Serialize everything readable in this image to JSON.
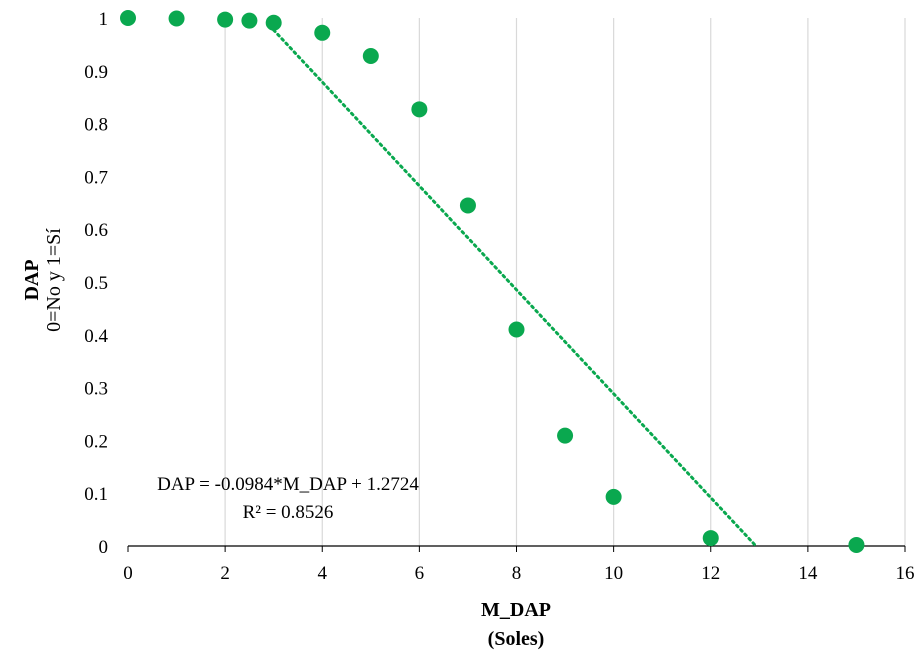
{
  "chart_data": {
    "type": "scatter",
    "xlabel": "M_DAP",
    "xlabel_unit": "(Soles)",
    "ylabel": "DAP",
    "ylabel_sub": "0=No y 1=Sí",
    "xlim": [
      0,
      16
    ],
    "ylim": [
      0,
      1
    ],
    "x_ticks": [
      "0",
      "2",
      "4",
      "6",
      "8",
      "10",
      "12",
      "14",
      "16"
    ],
    "y_ticks": [
      "0",
      "0.1",
      "0.2",
      "0.3",
      "0.4",
      "0.5",
      "0.6",
      "0.7",
      "0.8",
      "0.9",
      "1"
    ],
    "grid": "vertical",
    "series": [
      {
        "color": "#0aa84f",
        "x": [
          0,
          1,
          2,
          2.5,
          3,
          4,
          5,
          6,
          7,
          8,
          9,
          10,
          12,
          15
        ],
        "y": [
          1.0,
          0.999,
          0.997,
          0.995,
          0.991,
          0.972,
          0.928,
          0.827,
          0.645,
          0.41,
          0.209,
          0.093,
          0.015,
          0.002
        ]
      }
    ],
    "trendline": {
      "type": "linear",
      "slope": -0.0984,
      "intercept": 1.2724,
      "x_range": [
        3,
        12.93
      ],
      "style": "dotted",
      "color": "#0aa84f",
      "equation_label": "DAP = -0.0984*M_DAP + 1.2724",
      "r2_label": "R² = 0.8526"
    }
  }
}
